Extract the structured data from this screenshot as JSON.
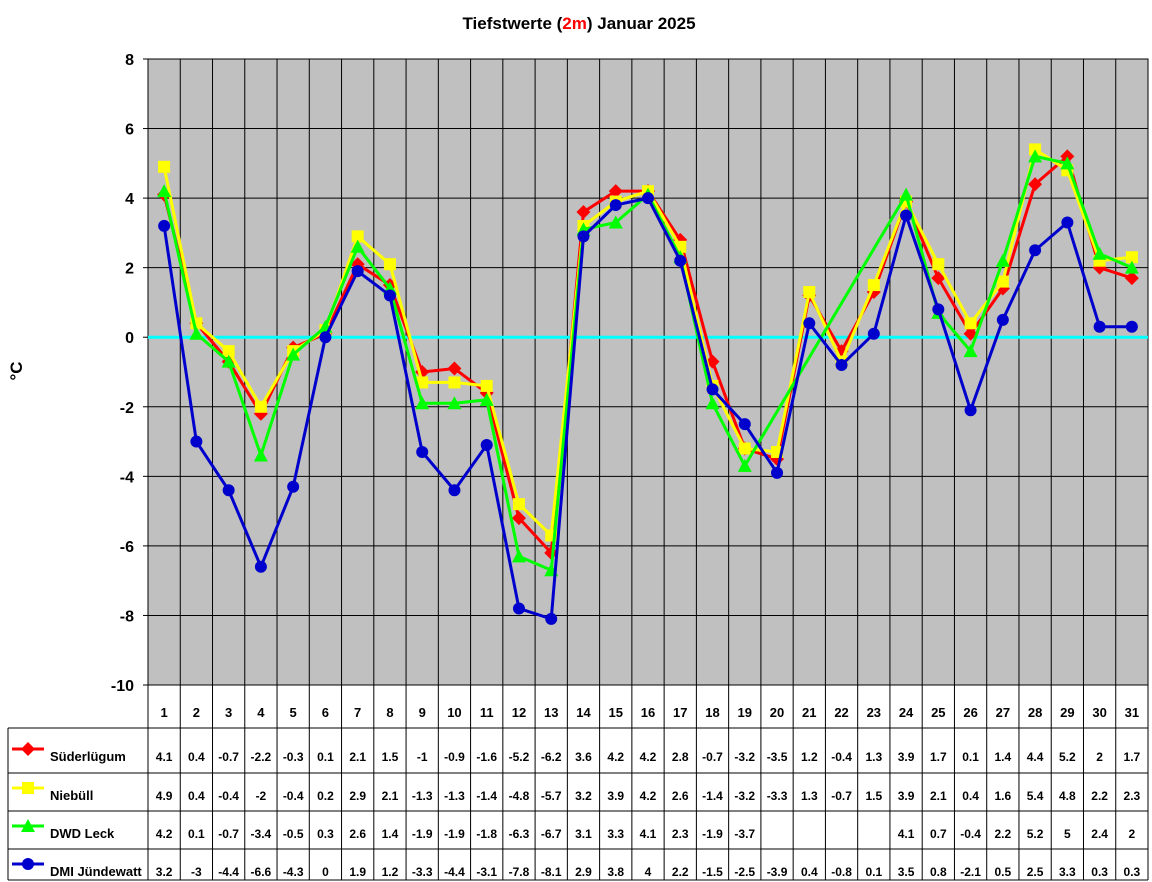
{
  "chart_data": {
    "type": "line",
    "title_parts": [
      "Tiefstwerte (",
      "2m",
      ") Januar 2025"
    ],
    "title_highlight_color": "#ff0000",
    "ylabel": "°C",
    "xlabel": "",
    "ylim": [
      -10,
      8
    ],
    "yticks": [
      8,
      6,
      4,
      2,
      0,
      -2,
      -4,
      -6,
      -8,
      -10
    ],
    "grid": true,
    "plot_background": "#c0c0c0",
    "zero_line_color": "#00ffff",
    "legend_placement": "data-table-left",
    "categories": [
      "1",
      "2",
      "3",
      "4",
      "5",
      "6",
      "7",
      "8",
      "9",
      "10",
      "11",
      "12",
      "13",
      "14",
      "15",
      "16",
      "17",
      "18",
      "19",
      "20",
      "21",
      "22",
      "23",
      "24",
      "25",
      "26",
      "27",
      "28",
      "29",
      "30",
      "31"
    ],
    "series": [
      {
        "name": "Süderlügum",
        "color": "#ff0000",
        "marker": "diamond",
        "values": [
          4.1,
          0.4,
          -0.7,
          -2.2,
          -0.3,
          0.1,
          2.1,
          1.5,
          -1,
          -0.9,
          -1.6,
          -5.2,
          -6.2,
          3.6,
          4.2,
          4.2,
          2.8,
          -0.7,
          -3.2,
          -3.5,
          1.2,
          -0.4,
          1.3,
          3.9,
          1.7,
          0.1,
          1.4,
          4.4,
          5.2,
          2,
          1.7
        ]
      },
      {
        "name": "Niebüll",
        "color": "#ffff00",
        "marker": "square",
        "values": [
          4.9,
          0.4,
          -0.4,
          -2,
          -0.4,
          0.2,
          2.9,
          2.1,
          -1.3,
          -1.3,
          -1.4,
          -4.8,
          -5.7,
          3.2,
          3.9,
          4.2,
          2.6,
          -1.4,
          -3.2,
          -3.3,
          1.3,
          -0.7,
          1.5,
          3.9,
          2.1,
          0.4,
          1.6,
          5.4,
          4.8,
          2.2,
          2.3
        ]
      },
      {
        "name": "DWD Leck",
        "color": "#00ff00",
        "marker": "triangle",
        "values": [
          4.2,
          0.1,
          -0.7,
          -3.4,
          -0.5,
          0.3,
          2.6,
          1.4,
          -1.9,
          -1.9,
          -1.8,
          -6.3,
          -6.7,
          3.1,
          3.3,
          4.1,
          2.3,
          -1.9,
          -3.7,
          null,
          null,
          null,
          null,
          4.1,
          0.7,
          -0.4,
          2.2,
          5.2,
          5,
          2.4,
          2
        ]
      },
      {
        "name": "DMI Jündewatt",
        "color": "#0000cc",
        "marker": "circle",
        "values": [
          3.2,
          -3,
          -4.4,
          -6.6,
          -4.3,
          0,
          1.9,
          1.2,
          -3.3,
          -4.4,
          -3.1,
          -7.8,
          -8.1,
          2.9,
          3.8,
          4,
          2.2,
          -1.5,
          -2.5,
          -3.9,
          0.4,
          -0.8,
          0.1,
          3.5,
          0.8,
          -2.1,
          0.5,
          2.5,
          3.3,
          0.3,
          0.3
        ]
      }
    ]
  }
}
